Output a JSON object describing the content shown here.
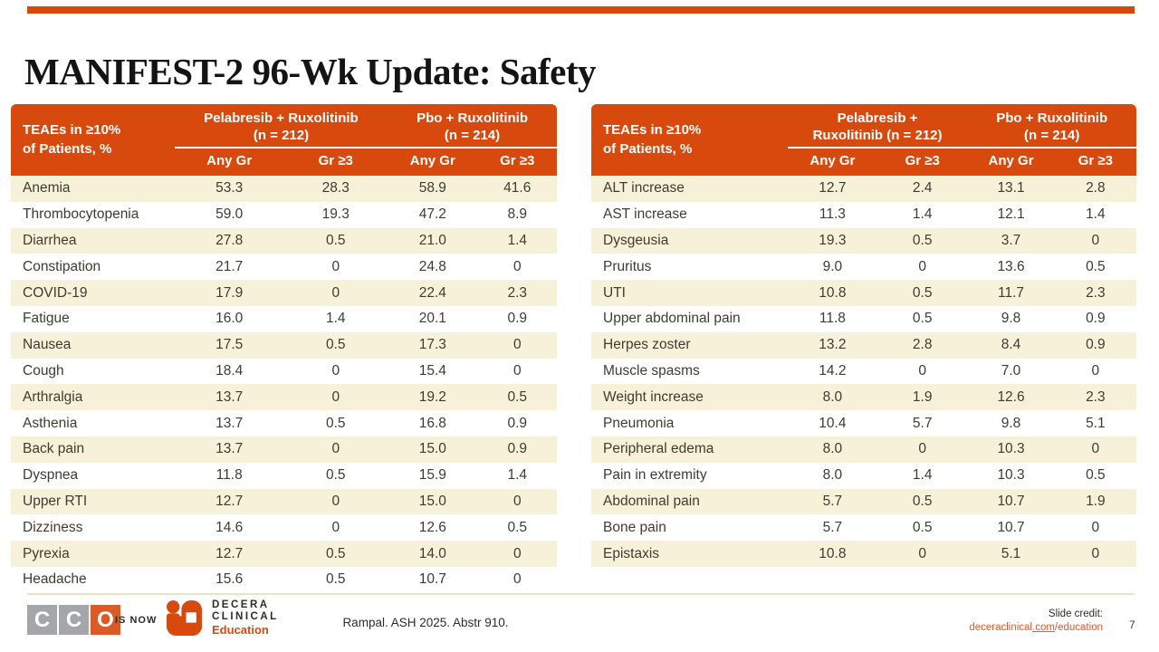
{
  "colors": {
    "accent": "#d8490e",
    "stripe": "#f7f1da",
    "link": "#e2572a"
  },
  "title": "MANIFEST-2 96-Wk Update: Safety",
  "tables": [
    {
      "row_header_line1": "TEAEs in ≥10%",
      "row_header_line2": "of Patients, %",
      "groups": [
        {
          "line1": "Pelabresib + Ruxolitinib",
          "line2": "(n = 212)"
        },
        {
          "line1": "Pbo + Ruxolitinib",
          "line2": "(n = 214)"
        }
      ],
      "subheaders": [
        "Any Gr",
        "Gr ≥3",
        "Any Gr",
        "Gr ≥3"
      ],
      "rows": [
        {
          "label": "Anemia",
          "values": [
            "53.3",
            "28.3",
            "58.9",
            "41.6"
          ]
        },
        {
          "label": "Thrombocytopenia",
          "values": [
            "59.0",
            "19.3",
            "47.2",
            "8.9"
          ]
        },
        {
          "label": "Diarrhea",
          "values": [
            "27.8",
            "0.5",
            "21.0",
            "1.4"
          ]
        },
        {
          "label": "Constipation",
          "values": [
            "21.7",
            "0",
            "24.8",
            "0"
          ]
        },
        {
          "label": "COVID-19",
          "values": [
            "17.9",
            "0",
            "22.4",
            "2.3"
          ]
        },
        {
          "label": "Fatigue",
          "values": [
            "16.0",
            "1.4",
            "20.1",
            "0.9"
          ]
        },
        {
          "label": "Nausea",
          "values": [
            "17.5",
            "0.5",
            "17.3",
            "0"
          ]
        },
        {
          "label": "Cough",
          "values": [
            "18.4",
            "0",
            "15.4",
            "0"
          ]
        },
        {
          "label": "Arthralgia",
          "values": [
            "13.7",
            "0",
            "19.2",
            "0.5"
          ]
        },
        {
          "label": "Asthenia",
          "values": [
            "13.7",
            "0.5",
            "16.8",
            "0.9"
          ]
        },
        {
          "label": "Back pain",
          "values": [
            "13.7",
            "0",
            "15.0",
            "0.9"
          ]
        },
        {
          "label": "Dyspnea",
          "values": [
            "11.8",
            "0.5",
            "15.9",
            "1.4"
          ]
        },
        {
          "label": "Upper RTI",
          "values": [
            "12.7",
            "0",
            "15.0",
            "0"
          ]
        },
        {
          "label": "Dizziness",
          "values": [
            "14.6",
            "0",
            "12.6",
            "0.5"
          ]
        },
        {
          "label": "Pyrexia",
          "values": [
            "12.7",
            "0.5",
            "14.0",
            "0"
          ]
        },
        {
          "label": "Headache",
          "values": [
            "15.6",
            "0.5",
            "10.7",
            "0"
          ]
        }
      ]
    },
    {
      "row_header_line1": "TEAEs in ≥10%",
      "row_header_line2": "of Patients, %",
      "groups": [
        {
          "line1": "Pelabresib +",
          "line2": "Ruxolitinib (n = 212)"
        },
        {
          "line1": "Pbo + Ruxolitinib",
          "line2": "(n = 214)"
        }
      ],
      "subheaders": [
        "Any Gr",
        "Gr ≥3",
        "Any Gr",
        "Gr ≥3"
      ],
      "rows": [
        {
          "label": "ALT increase",
          "values": [
            "12.7",
            "2.4",
            "13.1",
            "2.8"
          ]
        },
        {
          "label": "AST increase",
          "values": [
            "11.3",
            "1.4",
            "12.1",
            "1.4"
          ]
        },
        {
          "label": "Dysgeusia",
          "values": [
            "19.3",
            "0.5",
            "3.7",
            "0"
          ]
        },
        {
          "label": "Pruritus",
          "values": [
            "9.0",
            "0",
            "13.6",
            "0.5"
          ]
        },
        {
          "label": "UTI",
          "values": [
            "10.8",
            "0.5",
            "11.7",
            "2.3"
          ]
        },
        {
          "label": "Upper abdominal pain",
          "values": [
            "11.8",
            "0.5",
            "9.8",
            "0.9"
          ]
        },
        {
          "label": "Herpes zoster",
          "values": [
            "13.2",
            "2.8",
            "8.4",
            "0.9"
          ]
        },
        {
          "label": "Muscle spasms",
          "values": [
            "14.2",
            "0",
            "7.0",
            "0"
          ]
        },
        {
          "label": "Weight increase",
          "values": [
            "8.0",
            "1.9",
            "12.6",
            "2.3"
          ]
        },
        {
          "label": "Pneumonia",
          "values": [
            "10.4",
            "5.7",
            "9.8",
            "5.1"
          ]
        },
        {
          "label": "Peripheral edema",
          "values": [
            "8.0",
            "0",
            "10.3",
            "0"
          ]
        },
        {
          "label": "Pain in extremity",
          "values": [
            "8.0",
            "1.4",
            "10.3",
            "0.5"
          ]
        },
        {
          "label": "Abdominal pain",
          "values": [
            "5.7",
            "0.5",
            "10.7",
            "1.9"
          ]
        },
        {
          "label": "Bone pain",
          "values": [
            "5.7",
            "0.5",
            "10.7",
            "0"
          ]
        },
        {
          "label": "Epistaxis",
          "values": [
            "10.8",
            "0",
            "5.1",
            "0"
          ]
        }
      ]
    }
  ],
  "footer": {
    "cco_letters": [
      "C",
      "C",
      "O"
    ],
    "is_now": "IS NOW",
    "decera_line1": "DECERA",
    "decera_line2": "CLINICAL",
    "decera_line3": "Education",
    "citation": "Rampal. ASH 2025. Abstr 910.",
    "credit_label": "Slide credit:",
    "credit_link_pre": "deceraclinical",
    "credit_link_com": ".com",
    "credit_link_post": "/education",
    "page_number": "7"
  }
}
